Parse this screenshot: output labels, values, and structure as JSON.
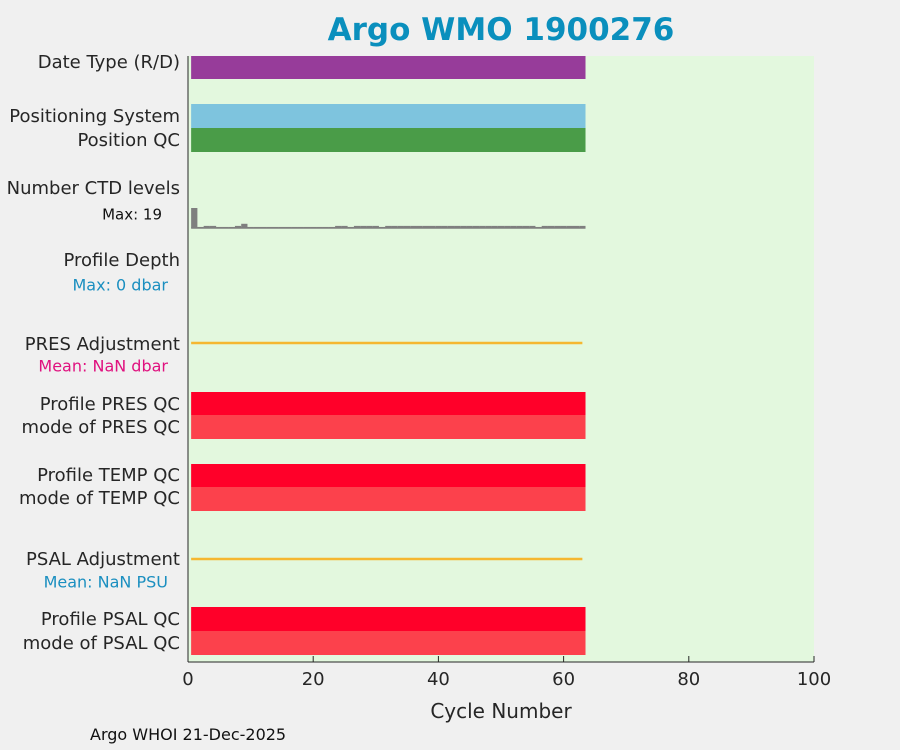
{
  "title": "Argo WMO 1900276",
  "footer": "Argo WHOI 21-Dec-2025",
  "colors": {
    "plot_bg": "#e3f8de",
    "page_bg": "#f0f0f0",
    "title": "#0a8fbd",
    "date_type": "#973c9a",
    "positioning_system": "#7ec4de",
    "position_qc": "#4a9c48",
    "ctd_levels": "#7f7f7f",
    "adjustment_line": "#f5b731",
    "profile_qc": "#ff0029",
    "mode_qc": "#fc414c",
    "depth_label": "#1b8fc0",
    "pres_adj_label": "#e0117f",
    "psal_adj_label": "#1b8fc0"
  },
  "chart_data": {
    "type": "bar",
    "title": "Argo WMO 1900276",
    "xlabel": "Cycle Number",
    "xlim": [
      0,
      100
    ],
    "xticks": [
      0,
      20,
      40,
      60,
      80,
      100
    ],
    "cycle_range": [
      0.5,
      63.5
    ],
    "rows": [
      {
        "label": "Date Type (R/D)",
        "kind": "bar",
        "start": 0.5,
        "end": 63.5,
        "color_key": "date_type"
      },
      {
        "label": "Positioning System",
        "kind": "bar",
        "start": 0.5,
        "end": 63.5,
        "color_key": "positioning_system"
      },
      {
        "label": "Position QC",
        "kind": "bar",
        "start": 0.5,
        "end": 63.5,
        "color_key": "position_qc"
      },
      {
        "label": "Number CTD levels",
        "kind": "levels",
        "max_label": "Max:",
        "max_value": 19,
        "cycles": [
          1,
          2,
          3,
          4,
          5,
          6,
          7,
          8,
          9,
          10,
          11,
          12,
          13,
          14,
          15,
          16,
          17,
          18,
          19,
          20,
          21,
          22,
          23,
          24,
          25,
          26,
          27,
          28,
          29,
          30,
          31,
          32,
          33,
          34,
          35,
          36,
          37,
          38,
          39,
          40,
          41,
          42,
          43,
          44,
          45,
          46,
          47,
          48,
          49,
          50,
          51,
          52,
          53,
          54,
          55,
          56,
          57,
          58,
          59,
          60,
          61,
          62,
          63
        ],
        "values": [
          19,
          1,
          2,
          2,
          1,
          1,
          1,
          2,
          4,
          1,
          1,
          1,
          1,
          1,
          1,
          1,
          1,
          1,
          1,
          1,
          1,
          1,
          1,
          2,
          2,
          1,
          2,
          2,
          2,
          2,
          1,
          2,
          2,
          2,
          2,
          2,
          2,
          2,
          2,
          2,
          2,
          2,
          2,
          2,
          2,
          2,
          2,
          2,
          2,
          2,
          2,
          2,
          2,
          2,
          2,
          1,
          2,
          2,
          2,
          2,
          2,
          2,
          2
        ]
      },
      {
        "label": "Profile Depth",
        "kind": "text",
        "max_label": "Max:",
        "max_value": "0 dbar"
      },
      {
        "label": "PRES Adjustment",
        "kind": "line",
        "start": 0.5,
        "end": 63,
        "mean_label": "Mean:",
        "mean_value": "NaN dbar"
      },
      {
        "label": "Profile PRES QC",
        "kind": "bar",
        "start": 0.5,
        "end": 63.5,
        "color_key": "profile_qc"
      },
      {
        "label": "mode of PRES QC",
        "kind": "bar",
        "start": 0.5,
        "end": 63.5,
        "color_key": "mode_qc"
      },
      {
        "label": "Profile TEMP QC",
        "kind": "bar",
        "start": 0.5,
        "end": 63.5,
        "color_key": "profile_qc"
      },
      {
        "label": "mode of TEMP QC",
        "kind": "bar",
        "start": 0.5,
        "end": 63.5,
        "color_key": "mode_qc"
      },
      {
        "label": "PSAL Adjustment",
        "kind": "line",
        "start": 0.5,
        "end": 63,
        "mean_label": "Mean:",
        "mean_value": "NaN PSU"
      },
      {
        "label": "Profile PSAL QC",
        "kind": "bar",
        "start": 0.5,
        "end": 63.5,
        "color_key": "profile_qc"
      },
      {
        "label": "mode of PSAL QC",
        "kind": "bar",
        "start": 0.5,
        "end": 63.5,
        "color_key": "mode_qc"
      }
    ]
  }
}
